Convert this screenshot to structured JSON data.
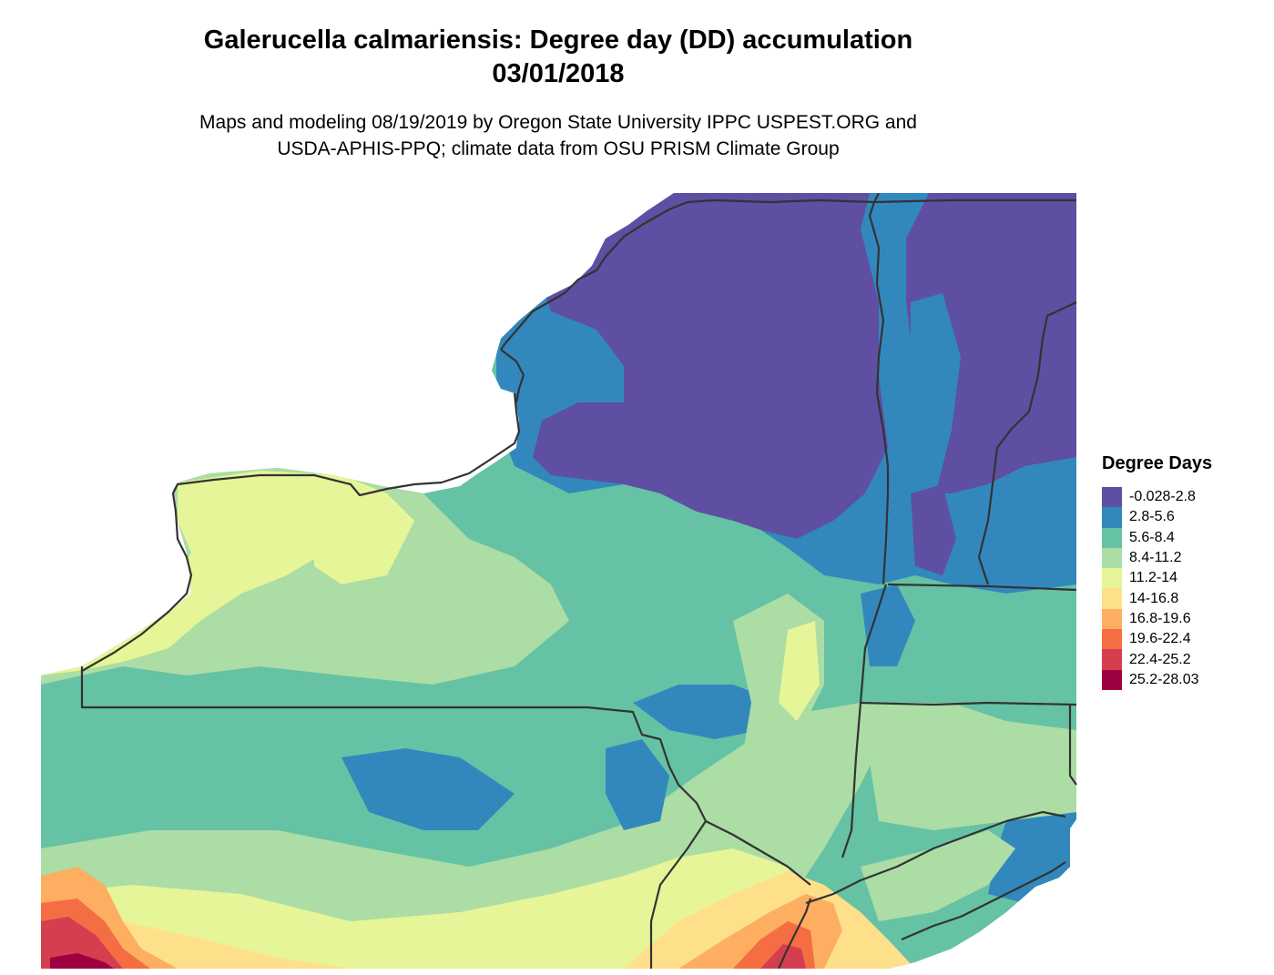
{
  "title": {
    "line1": "Galerucella calmariensis: Degree day (DD) accumulation",
    "line2": "03/01/2018"
  },
  "subtitle": {
    "line1": "Maps and modeling 08/19/2019 by Oregon State University IPPC USPEST.ORG and",
    "line2": "USDA-APHIS-PPQ; climate data from OSU PRISM Climate Group"
  },
  "legend": {
    "title": "Degree Days",
    "items": [
      {
        "label": "-0.028-2.8",
        "color": "#5e4fa2"
      },
      {
        "label": "2.8-5.6",
        "color": "#3288bd"
      },
      {
        "label": "5.6-8.4",
        "color": "#66c2a5"
      },
      {
        "label": "8.4-11.2",
        "color": "#abdda4"
      },
      {
        "label": "11.2-14",
        "color": "#e6f598"
      },
      {
        "label": "14-16.8",
        "color": "#fee08b"
      },
      {
        "label": "16.8-19.6",
        "color": "#fdae61"
      },
      {
        "label": "19.6-22.4",
        "color": "#f46d43"
      },
      {
        "label": "22.4-25.2",
        "color": "#d53e4f"
      },
      {
        "label": "25.2-28.03",
        "color": "#9e0142"
      }
    ]
  }
}
